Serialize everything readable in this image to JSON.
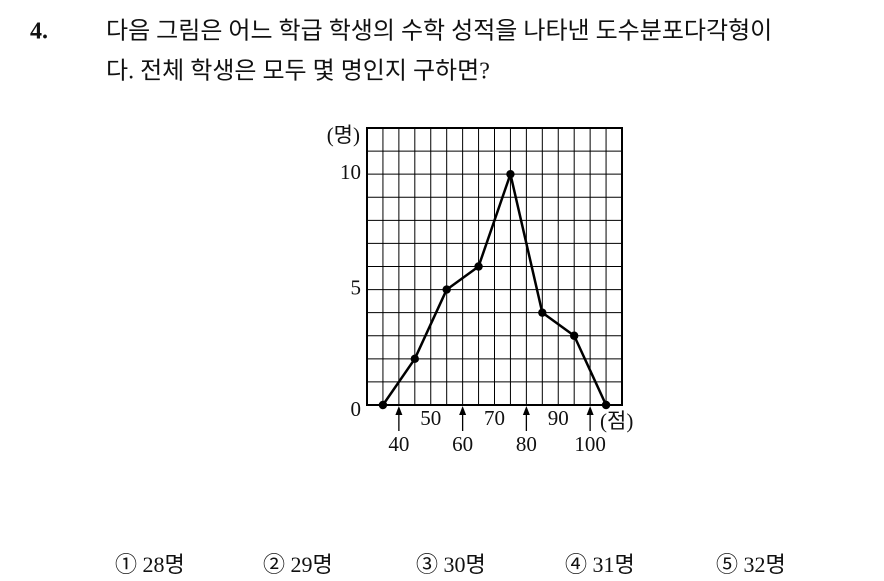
{
  "question": {
    "number": "4.",
    "lines": [
      "다음 그림은 어느 학급 학생의 수학 성적을 나타낸 도수분포다각형이",
      "다. 전체 학생은 모두 몇 명인지 구하면?"
    ]
  },
  "chart_data": {
    "type": "line",
    "y_label": "(명)",
    "x_label": "(점)",
    "x": [
      35,
      45,
      55,
      65,
      75,
      85,
      95,
      105
    ],
    "values": [
      0,
      2,
      5,
      6,
      10,
      4,
      3,
      0
    ],
    "color": "#000000",
    "xlim": [
      30,
      110
    ],
    "xticks": [
      40,
      50,
      60,
      70,
      80,
      90,
      100
    ],
    "ylim": [
      0,
      12
    ],
    "yticks": [
      0,
      5,
      10
    ],
    "grid": {
      "x": 5,
      "y": 1
    }
  },
  "choices": [
    "① 28명",
    "② 29명",
    "③ 30명",
    "④ 31명",
    "⑤ 32명"
  ]
}
